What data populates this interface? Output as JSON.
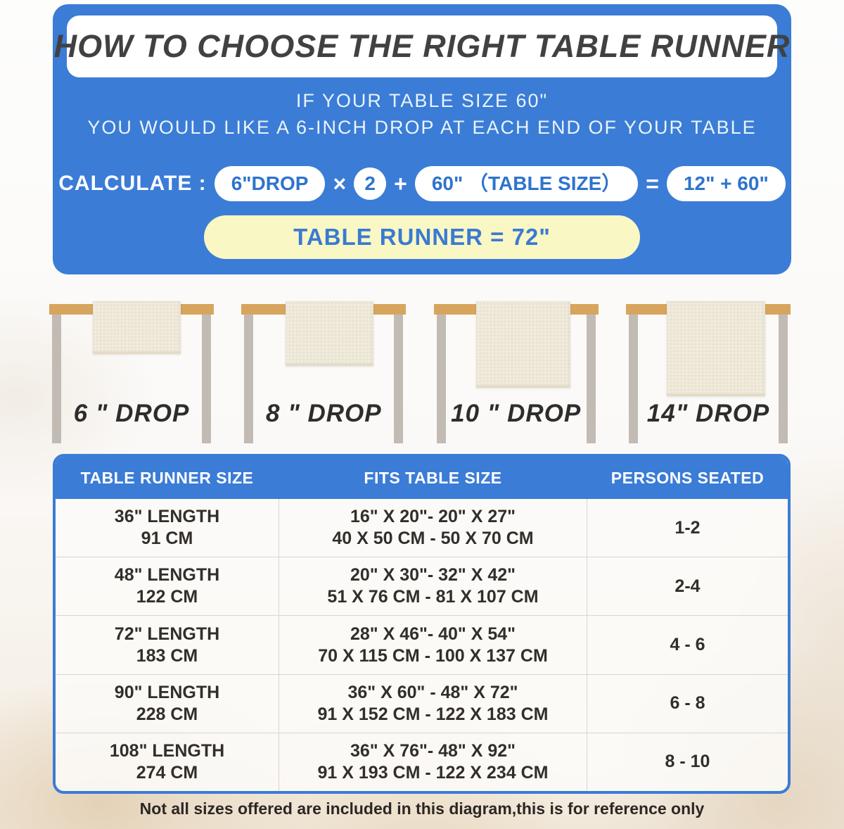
{
  "colors": {
    "panel_blue": "#3b7cd6",
    "pill_text_blue": "#2e74cc",
    "result_yellow": "#f9f7c4",
    "tabletop_wood": "#d7a55e",
    "table_leg_gray": "#c1bbb3",
    "runner_cream": "#f1ecdd",
    "text_dark": "#332e29"
  },
  "header": {
    "title": "HOW TO CHOOSE THE RIGHT TABLE RUNNER",
    "subtitle_line1": "IF YOUR TABLE SIZE 60\"",
    "subtitle_line2": "YOU WOULD LIKE A 6-INCH DROP AT EACH END OF YOUR TABLE",
    "calc": {
      "label": "CALCULATE :",
      "drop_pill": "6\"DROP",
      "times": "×",
      "multiplier": "2",
      "plus": "+",
      "table_size_pill": "60\" （TABLE SIZE）",
      "equals": "=",
      "result_pill": "12\" + 60\"",
      "final": "TABLE RUNNER = 72\""
    }
  },
  "drops": [
    {
      "label": "6 \" DROP"
    },
    {
      "label": "8 \" DROP"
    },
    {
      "label": "10 \" DROP"
    },
    {
      "label": "14\" DROP"
    }
  ],
  "size_table": {
    "headers": [
      "TABLE RUNNER SIZE",
      "FITS TABLE SIZE",
      "PERSONS SEATED"
    ],
    "rows": [
      {
        "runner_inch": "36\" LENGTH",
        "runner_cm": "91 CM",
        "fits_inch": "16\" X 20\"- 20\" X 27\"",
        "fits_cm": "40 X 50 CM - 50 X 70 CM",
        "persons": "1-2"
      },
      {
        "runner_inch": "48\" LENGTH",
        "runner_cm": "122 CM",
        "fits_inch": "20\" X 30\"- 32\" X 42\"",
        "fits_cm": "51 X 76 CM - 81 X 107 CM",
        "persons": "2-4"
      },
      {
        "runner_inch": "72\" LENGTH",
        "runner_cm": "183 CM",
        "fits_inch": "28\" X 46\"- 40\" X 54\"",
        "fits_cm": "70 X 115 CM - 100 X 137 CM",
        "persons": "4 - 6"
      },
      {
        "runner_inch": "90\" LENGTH",
        "runner_cm": "228 CM",
        "fits_inch": "36\" X 60\" - 48\" X 72\"",
        "fits_cm": "91 X 152 CM - 122 X 183 CM",
        "persons": "6 - 8"
      },
      {
        "runner_inch": "108\" LENGTH",
        "runner_cm": "274 CM",
        "fits_inch": "36\" X 76\"- 48\" X 92\"",
        "fits_cm": "91 X 193 CM - 122 X 234 CM",
        "persons": "8 - 10"
      }
    ]
  },
  "footer_note": "Not all sizes offered are included in this diagram,this is for reference only"
}
